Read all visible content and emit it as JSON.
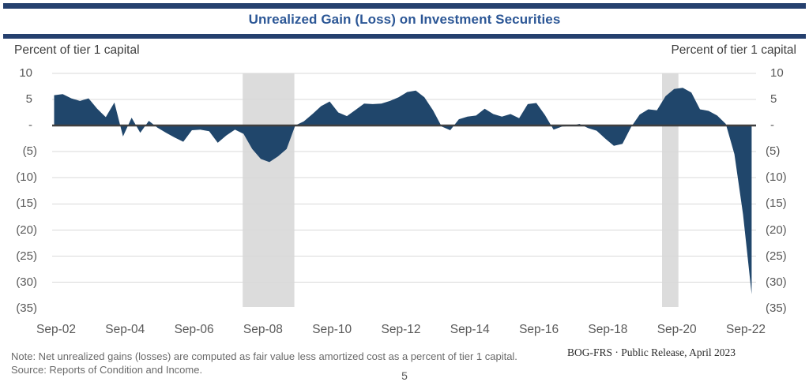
{
  "title": "Unrealized Gain (Loss) on Investment Securities",
  "axis_captions": {
    "left": "Percent of tier 1 capital",
    "right": "Percent of tier 1 capital"
  },
  "footer": {
    "note": "Note: Net unrealized gains (losses) are computed as fair value less amortized cost as a percent of tier 1 capital.",
    "source": "Source: Reports of Condition and Income.",
    "release": "BOG-FRS · Public Release, April 2023",
    "page_number": "5"
  },
  "colors": {
    "accent_bar": "#25406E",
    "title_text": "#2C5796",
    "area_fill": "#20466B",
    "zero_line": "#404040",
    "gridline": "#D9D9D9",
    "recession_band": "#DCDCDC",
    "tick_text": "#595959",
    "caption_text": "#3F3F3F",
    "note_text": "#6A6A6A",
    "release_text": "#2B2B2B"
  },
  "chart_data": {
    "type": "area",
    "title": "Unrealized Gain (Loss) on Investment Securities",
    "xlabel": "",
    "ylabel": "Percent of tier 1 capital",
    "ylim": [
      -35,
      10
    ],
    "grid": true,
    "baseline": 0,
    "legend": "none",
    "y_ticks": {
      "values": [
        10,
        5,
        0,
        -5,
        -10,
        -15,
        -20,
        -25,
        -30,
        -35
      ],
      "labels": [
        "10",
        "5",
        "-",
        "(5)",
        "(10)",
        "(15)",
        "(20)",
        "(25)",
        "(30)",
        "(35)"
      ]
    },
    "x_ticks": {
      "labels": [
        "Sep-02",
        "Sep-04",
        "Sep-06",
        "Sep-08",
        "Sep-10",
        "Sep-12",
        "Sep-14",
        "Sep-16",
        "Sep-18",
        "Sep-20",
        "Sep-22"
      ]
    },
    "series_start": "Sep-02",
    "series_end": "Dec-22",
    "series_frequency": "quarterly",
    "values": [
      5.8,
      6.0,
      5.2,
      4.7,
      5.2,
      3.2,
      1.6,
      4.4,
      -2.1,
      1.5,
      -1.4,
      0.9,
      -0.4,
      -1.4,
      -2.3,
      -3.1,
      -0.9,
      -0.8,
      -1.1,
      -3.3,
      -1.9,
      -0.8,
      -1.6,
      -4.5,
      -6.4,
      -7.0,
      -5.9,
      -4.5,
      0.0,
      0.8,
      2.2,
      3.7,
      4.6,
      2.5,
      1.8,
      3.0,
      4.2,
      4.1,
      4.2,
      4.7,
      5.4,
      6.4,
      6.7,
      5.4,
      2.9,
      -0.2,
      -0.9,
      1.2,
      1.7,
      1.9,
      3.2,
      2.2,
      1.7,
      2.2,
      1.4,
      4.1,
      4.3,
      2.0,
      -0.8,
      -0.2,
      -0.1,
      0.3,
      -0.5,
      -1.0,
      -2.5,
      -3.9,
      -3.5,
      -0.3,
      2.1,
      3.1,
      2.9,
      5.6,
      7.0,
      7.2,
      6.3,
      3.1,
      2.8,
      1.9,
      0.3,
      -5.5,
      -17.0,
      -32.3
    ],
    "recession_bands": [
      {
        "start_index": 21.9,
        "end_index": 27.9
      },
      {
        "start_index": 70.6,
        "end_index": 72.5
      }
    ]
  }
}
